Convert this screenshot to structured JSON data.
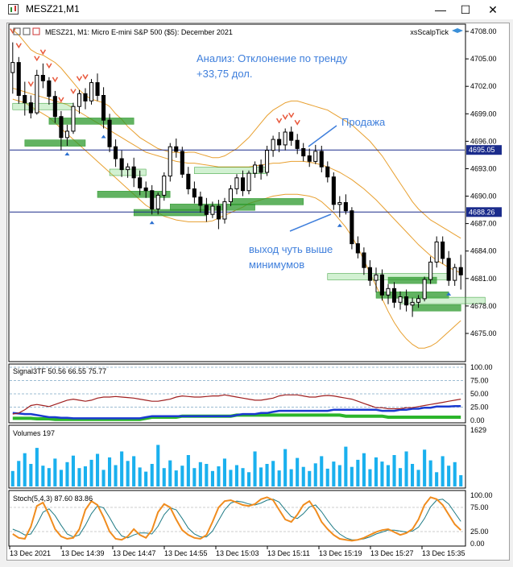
{
  "window": {
    "title": "MESZ21,M1"
  },
  "chart_header": {
    "symbol_info": "MESZ21, M1:  Micro E-mini S&P 500 ($5): December 2021"
  },
  "indicator_name": "xsScalpTick",
  "annotations": {
    "analysis_line1": "Анализ: Отклонение по тренду",
    "analysis_line2": "+33,75 дол.",
    "sell": "Продажа",
    "exit_line1": "выход чуть выше",
    "exit_line2": "минимумов"
  },
  "colors": {
    "candle": "#000000",
    "bands": "#e8a030",
    "hline": "#1b2c8c",
    "green_box": "#2e9a2e",
    "annotation": "#3f7fdc"
  },
  "price_axis": {
    "ticks": [
      "4708.00",
      "4705.00",
      "4702.00",
      "4699.00",
      "4696.00",
      "4693.00",
      "4690.00",
      "4687.00",
      "4684.00",
      "4681.00",
      "4678.00",
      "4675.00"
    ],
    "hline_labels": [
      "4695.05",
      "4688.26"
    ]
  },
  "time_axis": {
    "ticks": [
      "13 Dec 2021",
      "13 Dec 14:39",
      "13 Dec 14:47",
      "13 Dec 14:55",
      "13 Dec 15:03",
      "13 Dec 15:11",
      "13 Dec 15:19",
      "13 Dec 15:27",
      "13 Dec 15:35"
    ]
  },
  "signal_panel": {
    "title": "Signal3TF 50.56 66.55 75.77",
    "ticks": [
      "100.00",
      "75.00",
      "50.00",
      "25.00",
      "0.00"
    ]
  },
  "volume_panel": {
    "title": "Volumes 197",
    "tick": "1629"
  },
  "stoch_panel": {
    "title": "Stoch(5,4,3) 87.60 83.86",
    "ticks": [
      "100.00",
      "75.00",
      "25.00",
      "0.00"
    ]
  },
  "chart_data": {
    "type": "line",
    "candles": [
      [
        4703.5,
        4706.8,
        4701.2,
        4704.6
      ],
      [
        4704.6,
        4705.2,
        4700.1,
        4701.0
      ],
      [
        4701.0,
        4702.5,
        4698.8,
        4700.2
      ],
      [
        4700.2,
        4701.0,
        4698.5,
        4699.1
      ],
      [
        4699.1,
        4703.8,
        4698.9,
        4703.2
      ],
      [
        4703.2,
        4704.5,
        4701.8,
        4702.6
      ],
      [
        4702.6,
        4703.0,
        4700.0,
        4700.9
      ],
      [
        4700.9,
        4701.5,
        4698.0,
        4698.7
      ],
      [
        4698.7,
        4699.3,
        4695.0,
        4696.4
      ],
      [
        4696.4,
        4697.8,
        4695.5,
        4697.1
      ],
      [
        4697.1,
        4700.2,
        4696.8,
        4699.8
      ],
      [
        4699.8,
        4701.6,
        4699.0,
        4701.2
      ],
      [
        4701.2,
        4701.8,
        4699.5,
        4700.4
      ],
      [
        4700.4,
        4702.8,
        4700.0,
        4702.4
      ],
      [
        4702.4,
        4703.4,
        4700.4,
        4701.0
      ],
      [
        4701.0,
        4701.9,
        4697.4,
        4698.3
      ],
      [
        4698.3,
        4699.0,
        4694.8,
        4695.4
      ],
      [
        4695.4,
        4696.2,
        4693.2,
        4694.1
      ],
      [
        4694.1,
        4695.0,
        4692.1,
        4692.9
      ],
      [
        4692.9,
        4693.6,
        4692.0,
        4693.2
      ],
      [
        4693.2,
        4694.2,
        4691.0,
        4692.0
      ],
      [
        4692.0,
        4692.8,
        4690.1,
        4690.9
      ],
      [
        4690.9,
        4691.6,
        4689.8,
        4690.6
      ],
      [
        4690.6,
        4691.2,
        4688.0,
        4688.6
      ],
      [
        4688.6,
        4690.4,
        4688.0,
        4690.1
      ],
      [
        4690.1,
        4692.6,
        4689.5,
        4692.2
      ],
      [
        4692.2,
        4695.8,
        4691.6,
        4695.4
      ],
      [
        4695.4,
        4696.3,
        4694.2,
        4694.9
      ],
      [
        4694.9,
        4695.4,
        4692.0,
        4692.4
      ],
      [
        4692.4,
        4693.2,
        4690.2,
        4690.8
      ],
      [
        4690.8,
        4691.6,
        4689.2,
        4689.9
      ],
      [
        4689.9,
        4690.5,
        4688.2,
        4689.0
      ],
      [
        4689.0,
        4689.8,
        4687.2,
        4688.0
      ],
      [
        4688.0,
        4689.4,
        4687.6,
        4688.9
      ],
      [
        4688.9,
        4689.6,
        4686.4,
        4687.5
      ],
      [
        4687.5,
        4689.8,
        4687.0,
        4689.4
      ],
      [
        4689.4,
        4691.2,
        4688.9,
        4690.8
      ],
      [
        4690.8,
        4692.4,
        4690.2,
        4692.0
      ],
      [
        4692.0,
        4692.8,
        4690.0,
        4690.6
      ],
      [
        4690.6,
        4692.8,
        4690.2,
        4692.5
      ],
      [
        4692.5,
        4693.8,
        4692.0,
        4693.4
      ],
      [
        4693.4,
        4694.0,
        4691.8,
        4692.6
      ],
      [
        4692.6,
        4695.5,
        4692.2,
        4695.0
      ],
      [
        4695.0,
        4696.6,
        4694.3,
        4696.2
      ],
      [
        4696.2,
        4697.0,
        4694.8,
        4695.6
      ],
      [
        4695.6,
        4697.4,
        4695.0,
        4697.0
      ],
      [
        4697.0,
        4697.6,
        4695.5,
        4696.1
      ],
      [
        4696.1,
        4696.8,
        4694.6,
        4695.2
      ],
      [
        4695.2,
        4695.8,
        4693.8,
        4694.4
      ],
      [
        4694.4,
        4695.2,
        4693.2,
        4693.8
      ],
      [
        4693.8,
        4695.6,
        4693.5,
        4694.9
      ],
      [
        4694.9,
        4695.5,
        4692.6,
        4693.2
      ],
      [
        4693.2,
        4693.8,
        4691.5,
        4692.1
      ],
      [
        4692.1,
        4692.6,
        4688.5,
        4689.1
      ],
      [
        4689.1,
        4690.0,
        4687.7,
        4689.3
      ],
      [
        4689.3,
        4690.2,
        4688.0,
        4688.4
      ],
      [
        4688.4,
        4688.8,
        4684.2,
        4684.8
      ],
      [
        4684.8,
        4685.6,
        4683.2,
        4683.8
      ],
      [
        4683.8,
        4684.4,
        4681.4,
        4682.2
      ],
      [
        4682.2,
        4683.0,
        4680.2,
        4680.8
      ],
      [
        4680.8,
        4682.2,
        4679.5,
        4681.4
      ],
      [
        4681.4,
        4682.0,
        4678.6,
        4679.2
      ],
      [
        4679.2,
        4680.4,
        4678.2,
        4679.9
      ],
      [
        4679.9,
        4680.6,
        4677.8,
        4678.4
      ],
      [
        4678.4,
        4679.6,
        4677.6,
        4679.0
      ],
      [
        4679.0,
        4679.8,
        4677.4,
        4678.1
      ],
      [
        4678.1,
        4678.9,
        4676.8,
        4678.4
      ],
      [
        4678.4,
        4679.2,
        4677.8,
        4678.8
      ],
      [
        4678.8,
        4681.2,
        4678.5,
        4680.9
      ],
      [
        4680.9,
        4683.4,
        4680.4,
        4682.8
      ],
      [
        4682.8,
        4685.6,
        4682.2,
        4685.0
      ],
      [
        4685.0,
        4685.6,
        4682.6,
        4683.2
      ],
      [
        4683.2,
        4684.0,
        4680.2,
        4680.8
      ],
      [
        4680.8,
        4682.6,
        4680.2,
        4682.2
      ],
      [
        4682.2,
        4683.6,
        4679.8,
        4681.4
      ]
    ],
    "upper_band": [
      4708.2,
      4707.6,
      4706.8,
      4706.0,
      4705.6,
      4705.4,
      4705.0,
      4704.6,
      4704.0,
      4703.2,
      4702.4,
      4701.6,
      4701.0,
      4700.6,
      4700.4,
      4700.2,
      4699.8,
      4699.0,
      4698.4,
      4697.6,
      4697.0,
      4696.4,
      4696.0,
      4695.6,
      4695.2,
      4695.0,
      4694.8,
      4694.8,
      4694.7,
      4694.8,
      4694.8,
      4694.6,
      4694.4,
      4694.2,
      4694.2,
      4694.4,
      4694.8,
      4695.2,
      4695.8,
      4696.4,
      4697.2,
      4698.0,
      4698.8,
      4699.4,
      4699.8,
      4700.2,
      4700.4,
      4700.4,
      4700.2,
      4700.0,
      4699.8,
      4699.6,
      4699.4,
      4699.0,
      4698.6,
      4698.2,
      4697.8,
      4697.2,
      4696.6,
      4696.0,
      4695.2,
      4694.4,
      4693.4,
      4692.4,
      4691.4,
      4690.4,
      4689.4,
      4688.6,
      4688.0,
      4687.4,
      4687.0,
      4686.6,
      4686.2,
      4685.8,
      4685.4
    ],
    "middle_band": [
      4701.8,
      4701.6,
      4701.4,
      4701.2,
      4701.0,
      4700.8,
      4700.6,
      4700.4,
      4700.2,
      4700.0,
      4699.6,
      4699.2,
      4698.8,
      4698.4,
      4698.0,
      4697.6,
      4697.2,
      4696.8,
      4696.4,
      4696.0,
      4695.6,
      4695.2,
      4694.8,
      4694.6,
      4694.4,
      4694.2,
      4694.0,
      4693.8,
      4693.7,
      4693.6,
      4693.6,
      4693.5,
      4693.4,
      4693.3,
      4693.2,
      4693.2,
      4693.2,
      4693.2,
      4693.2,
      4693.2,
      4693.3,
      4693.4,
      4693.5,
      4693.6,
      4693.6,
      4693.7,
      4693.8,
      4693.8,
      4693.8,
      4693.7,
      4693.6,
      4693.4,
      4693.2,
      4692.9,
      4692.6,
      4692.2,
      4691.8,
      4691.3,
      4690.8,
      4690.2,
      4689.6,
      4688.9,
      4688.2,
      4687.5,
      4686.8,
      4686.1,
      4685.4,
      4684.7,
      4684.1,
      4683.5,
      4683.0,
      4682.6,
      4682.2,
      4681.9,
      4681.6
    ],
    "lower_band": [
      4700.6,
      4700.4,
      4700.2,
      4699.8,
      4699.4,
      4699.0,
      4698.6,
      4698.0,
      4697.4,
      4696.8,
      4696.2,
      4695.6,
      4695.0,
      4694.4,
      4693.8,
      4693.2,
      4692.6,
      4692.0,
      4691.4,
      4690.8,
      4690.2,
      4689.6,
      4689.0,
      4688.6,
      4688.2,
      4687.8,
      4687.6,
      4687.4,
      4687.3,
      4687.2,
      4687.2,
      4687.2,
      4687.2,
      4687.3,
      4687.6,
      4687.9,
      4688.2,
      4688.5,
      4688.8,
      4689.2,
      4689.4,
      4689.6,
      4689.8,
      4690.0,
      4690.1,
      4690.2,
      4690.2,
      4690.2,
      4690.1,
      4690.0,
      4689.8,
      4689.4,
      4688.8,
      4688.2,
      4687.4,
      4686.6,
      4685.6,
      4684.4,
      4683.0,
      4681.6,
      4680.2,
      4678.8,
      4677.4,
      4676.2,
      4675.2,
      4674.4,
      4673.8,
      4673.4,
      4673.4,
      4673.6,
      4674.0,
      4674.6,
      4675.2,
      4675.8,
      4676.4
    ],
    "hlines": [
      4695.05,
      4688.26
    ],
    "ylim": [
      4672.5,
      4708.6
    ],
    "signal_lines": {
      "red": [
        12,
        14,
        20,
        28,
        30,
        28,
        26,
        30,
        34,
        38,
        40,
        38,
        36,
        38,
        42,
        44,
        44,
        45,
        44,
        43,
        42,
        40,
        38,
        36,
        36,
        38,
        40,
        44,
        46,
        45,
        44,
        44,
        45,
        46,
        46,
        48,
        46,
        44,
        42,
        40,
        38,
        38,
        40,
        42,
        46,
        48,
        48,
        48,
        46,
        44,
        44,
        46,
        47,
        46,
        44,
        42,
        40,
        36,
        32,
        28,
        24,
        24,
        22,
        22,
        22,
        24,
        24,
        26,
        28,
        30,
        32,
        34,
        36,
        38,
        40
      ],
      "blue": [
        14,
        13,
        12,
        12,
        10,
        8,
        6,
        6,
        5,
        5,
        4,
        4,
        4,
        4,
        4,
        4,
        4,
        4,
        4,
        4,
        4,
        4,
        6,
        8,
        8,
        8,
        8,
        8,
        8,
        8,
        8,
        8,
        8,
        8,
        8,
        8,
        8,
        10,
        12,
        12,
        12,
        14,
        14,
        16,
        18,
        18,
        18,
        18,
        18,
        18,
        18,
        18,
        18,
        20,
        20,
        20,
        20,
        20,
        20,
        20,
        20,
        18,
        18,
        18,
        20,
        20,
        22,
        22,
        24,
        24,
        26,
        26,
        26,
        27,
        27
      ],
      "green": [
        4,
        4,
        4,
        4,
        3,
        3,
        3,
        2,
        2,
        2,
        2,
        2,
        2,
        2,
        2,
        2,
        2,
        2,
        2,
        2,
        2,
        2,
        4,
        6,
        6,
        6,
        6,
        6,
        8,
        8,
        8,
        8,
        8,
        8,
        8,
        8,
        8,
        10,
        10,
        10,
        10,
        10,
        10,
        10,
        10,
        10,
        10,
        10,
        10,
        10,
        10,
        10,
        10,
        10,
        10,
        8,
        8,
        8,
        8,
        8,
        8,
        8,
        6,
        6,
        6,
        6,
        6,
        6,
        6,
        6,
        6,
        6,
        6,
        6,
        6
      ]
    },
    "volumes": [
      520,
      860,
      1120,
      760,
      1300,
      700,
      620,
      940,
      560,
      820,
      1040,
      620,
      680,
      900,
      1100,
      560,
      980,
      720,
      1180,
      860,
      1020,
      640,
      500,
      760,
      1400,
      620,
      880,
      540,
      700,
      1060,
      620,
      820,
      760,
      520,
      680,
      940,
      560,
      720,
      620,
      480,
      1180,
      640,
      760,
      860,
      540,
      1260,
      580,
      960,
      660,
      520,
      780,
      1020,
      600,
      840,
      720,
      1340,
      660,
      900,
      1120,
      580,
      980,
      840,
      720,
      1060,
      620,
      1180,
      760,
      560,
      1240,
      880,
      480,
      1020,
      700,
      820,
      380
    ],
    "stoch_k": [
      20,
      12,
      10,
      35,
      78,
      85,
      60,
      30,
      15,
      10,
      12,
      30,
      70,
      88,
      80,
      55,
      25,
      10,
      8,
      15,
      30,
      18,
      12,
      28,
      65,
      82,
      75,
      50,
      28,
      18,
      12,
      10,
      18,
      45,
      75,
      88,
      90,
      85,
      80,
      78,
      82,
      92,
      96,
      90,
      70,
      50,
      45,
      60,
      80,
      88,
      70,
      45,
      30,
      18,
      10,
      8,
      6,
      8,
      12,
      18,
      24,
      28,
      30,
      24,
      18,
      22,
      30,
      50,
      80,
      96,
      92,
      80,
      60,
      40,
      28
    ],
    "stoch_d": [
      30,
      25,
      18,
      20,
      40,
      65,
      72,
      58,
      38,
      20,
      14,
      18,
      38,
      62,
      78,
      74,
      54,
      32,
      16,
      12,
      18,
      22,
      22,
      20,
      36,
      60,
      74,
      70,
      52,
      32,
      20,
      14,
      14,
      26,
      48,
      70,
      84,
      88,
      86,
      82,
      80,
      84,
      90,
      92,
      86,
      70,
      56,
      52,
      62,
      76,
      80,
      66,
      48,
      32,
      20,
      12,
      8,
      8,
      10,
      14,
      20,
      24,
      28,
      28,
      26,
      24,
      26,
      34,
      52,
      76,
      90,
      92,
      82,
      64,
      46
    ]
  }
}
